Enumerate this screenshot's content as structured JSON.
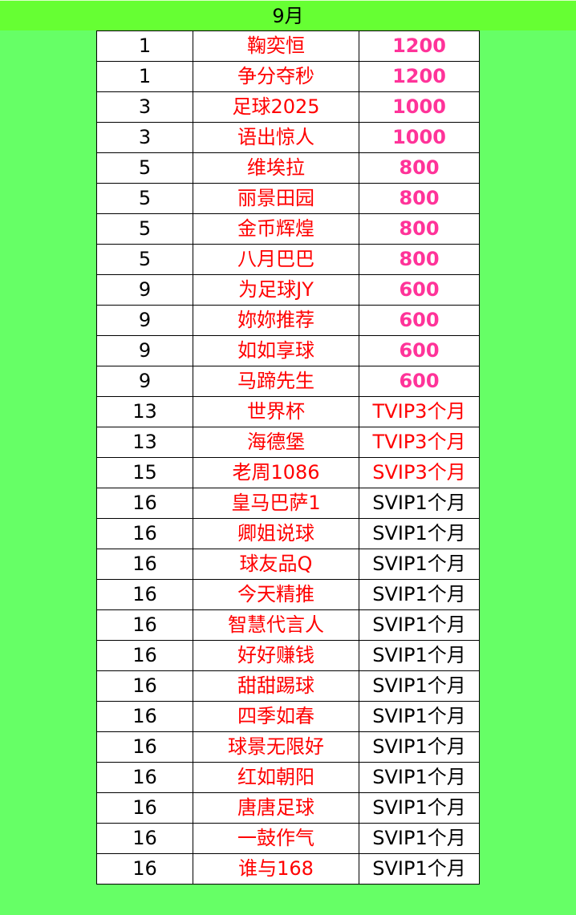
{
  "title": "9月",
  "colors": {
    "header_bg": "#66ff33",
    "page_bg": "#66ff66",
    "name": "#ff0000",
    "prize_points": "#ff3399",
    "prize_vip_highlight": "#ff0000",
    "prize_vip_default": "#000000"
  },
  "rows": [
    {
      "rank": "1",
      "name": "鞠奕恒",
      "prize": "1200",
      "style": "pink"
    },
    {
      "rank": "1",
      "name": "争分夺秒",
      "prize": "1200",
      "style": "pink"
    },
    {
      "rank": "3",
      "name": "足球2025",
      "prize": "1000",
      "style": "pink"
    },
    {
      "rank": "3",
      "name": "语出惊人",
      "prize": "1000",
      "style": "pink"
    },
    {
      "rank": "5",
      "name": "维埃拉",
      "prize": "800",
      "style": "pink"
    },
    {
      "rank": "5",
      "name": "丽景田园",
      "prize": "800",
      "style": "pink"
    },
    {
      "rank": "5",
      "name": "金币辉煌",
      "prize": "800",
      "style": "pink"
    },
    {
      "rank": "5",
      "name": "八月巴巴",
      "prize": "800",
      "style": "pink"
    },
    {
      "rank": "9",
      "name": "为足球JY",
      "prize": "600",
      "style": "pink"
    },
    {
      "rank": "9",
      "name": "妳妳推荐",
      "prize": "600",
      "style": "pink"
    },
    {
      "rank": "9",
      "name": "如如享球",
      "prize": "600",
      "style": "pink"
    },
    {
      "rank": "9",
      "name": "马蹄先生",
      "prize": "600",
      "style": "pink"
    },
    {
      "rank": "13",
      "name": "世界杯",
      "prize": "TVIP3个月",
      "style": "red"
    },
    {
      "rank": "13",
      "name": "海德堡",
      "prize": "TVIP3个月",
      "style": "red"
    },
    {
      "rank": "15",
      "name": "老周1086",
      "prize": "SVIP3个月",
      "style": "red"
    },
    {
      "rank": "16",
      "name": "皇马巴萨1",
      "prize": "SVIP1个月",
      "style": "black"
    },
    {
      "rank": "16",
      "name": "卿姐说球",
      "prize": "SVIP1个月",
      "style": "black"
    },
    {
      "rank": "16",
      "name": "球友品Q",
      "prize": "SVIP1个月",
      "style": "black"
    },
    {
      "rank": "16",
      "name": "今天精推",
      "prize": "SVIP1个月",
      "style": "black"
    },
    {
      "rank": "16",
      "name": "智慧代言人",
      "prize": "SVIP1个月",
      "style": "black"
    },
    {
      "rank": "16",
      "name": "好好赚钱",
      "prize": "SVIP1个月",
      "style": "black"
    },
    {
      "rank": "16",
      "name": "甜甜踢球",
      "prize": "SVIP1个月",
      "style": "black"
    },
    {
      "rank": "16",
      "name": "四季如春",
      "prize": "SVIP1个月",
      "style": "black"
    },
    {
      "rank": "16",
      "name": "球景无限好",
      "prize": "SVIP1个月",
      "style": "black"
    },
    {
      "rank": "16",
      "name": "红如朝阳",
      "prize": "SVIP1个月",
      "style": "black"
    },
    {
      "rank": "16",
      "name": "唐唐足球",
      "prize": "SVIP1个月",
      "style": "black"
    },
    {
      "rank": "16",
      "name": "一鼓作气",
      "prize": "SVIP1个月",
      "style": "black"
    },
    {
      "rank": "16",
      "name": "谁与168",
      "prize": "SVIP1个月",
      "style": "black"
    }
  ]
}
